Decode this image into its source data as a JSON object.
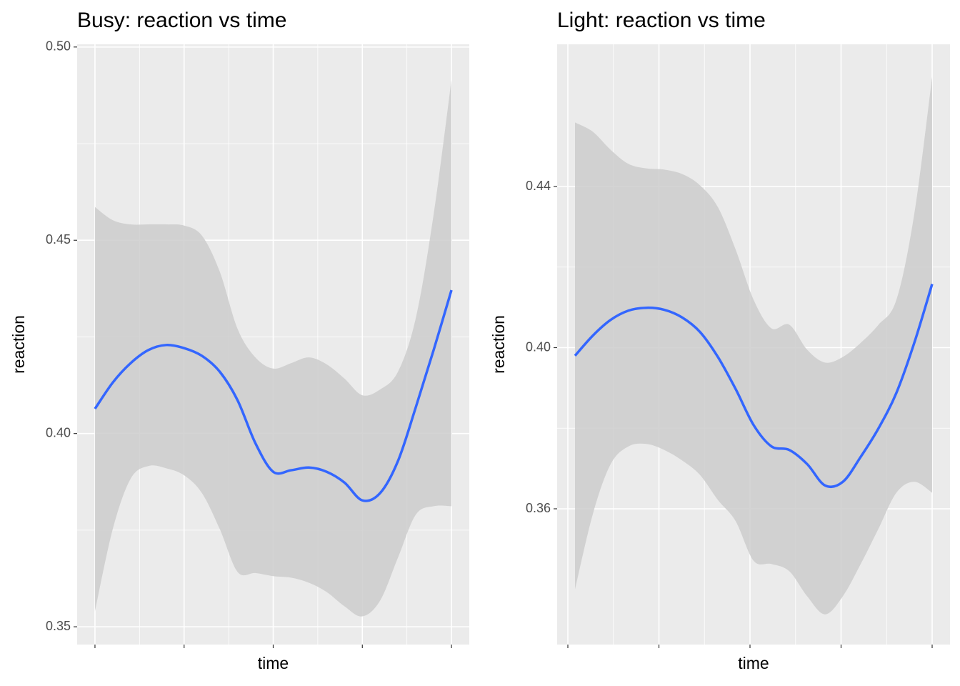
{
  "chart_data": [
    {
      "type": "line",
      "title": "Busy: reaction vs time",
      "x_label": "time",
      "y_label": "reaction",
      "x": [
        0,
        5,
        10,
        15,
        20,
        25,
        30,
        35,
        40,
        45,
        50,
        55,
        60,
        65,
        70,
        75,
        80,
        85,
        90,
        95,
        100
      ],
      "values": [
        0.4064,
        0.4132,
        0.4182,
        0.4216,
        0.4229,
        0.4221,
        0.4201,
        0.416,
        0.4086,
        0.3975,
        0.3901,
        0.3905,
        0.3912,
        0.3901,
        0.3873,
        0.3827,
        0.3846,
        0.3929,
        0.4068,
        0.4216,
        0.4371
      ],
      "upper": [
        0.4586,
        0.4552,
        0.4541,
        0.4541,
        0.4541,
        0.4538,
        0.4512,
        0.4419,
        0.4271,
        0.4197,
        0.4168,
        0.4182,
        0.4197,
        0.4179,
        0.4142,
        0.4099,
        0.4114,
        0.416,
        0.4299,
        0.4567,
        0.4915
      ],
      "lower": [
        0.354,
        0.3753,
        0.3883,
        0.3916,
        0.391,
        0.3892,
        0.3846,
        0.3753,
        0.3642,
        0.3639,
        0.3631,
        0.3627,
        0.3614,
        0.359,
        0.3553,
        0.3527,
        0.3568,
        0.3679,
        0.379,
        0.3812,
        0.3812
      ],
      "color": "#3366ff",
      "band_color": "#cccccc",
      "xlim": [
        -5,
        105
      ],
      "xticks": [
        0,
        25,
        50,
        75,
        100
      ],
      "ylim": [
        0.3454,
        0.5007
      ],
      "yticks": [
        0.35,
        {
          "value": 0.4,
          "label": "0.40"
        },
        0.45,
        {
          "value": 0.5,
          "label": "0.50"
        }
      ],
      "grid": true
    },
    {
      "type": "line",
      "title": "Light: reaction vs time",
      "x_label": "time",
      "y_label": "reaction",
      "x": [
        0,
        5,
        10,
        15,
        20,
        25,
        30,
        35,
        40,
        45,
        50,
        55,
        60,
        65,
        70,
        75,
        80,
        85,
        90,
        95,
        100
      ],
      "values": [
        0.398,
        0.403,
        0.4069,
        0.4092,
        0.4099,
        0.4094,
        0.4075,
        0.4039,
        0.3977,
        0.3897,
        0.3808,
        0.3755,
        0.3746,
        0.3711,
        0.3658,
        0.3667,
        0.3729,
        0.38,
        0.3888,
        0.4012,
        0.4158
      ],
      "upper": [
        0.4559,
        0.4536,
        0.4491,
        0.4456,
        0.4445,
        0.4442,
        0.4431,
        0.4403,
        0.4349,
        0.4243,
        0.4119,
        0.4048,
        0.4057,
        0.3995,
        0.3963,
        0.3977,
        0.4012,
        0.4057,
        0.4119,
        0.4332,
        0.4672
      ],
      "lower": [
        0.34,
        0.3587,
        0.3711,
        0.3755,
        0.3761,
        0.3746,
        0.372,
        0.3684,
        0.3622,
        0.3569,
        0.3471,
        0.3463,
        0.3445,
        0.3383,
        0.3338,
        0.3383,
        0.3463,
        0.3551,
        0.364,
        0.3667,
        0.364
      ],
      "color": "#3366ff",
      "band_color": "#cccccc",
      "xlim": [
        -5,
        105
      ],
      "xticks": [
        -2,
        23.5,
        49,
        74.5,
        100
      ],
      "ylim": [
        0.3263,
        0.4753
      ],
      "yticks": [
        0.36,
        {
          "value": 0.4,
          "label": "0.40"
        },
        0.44
      ],
      "grid": true
    }
  ]
}
